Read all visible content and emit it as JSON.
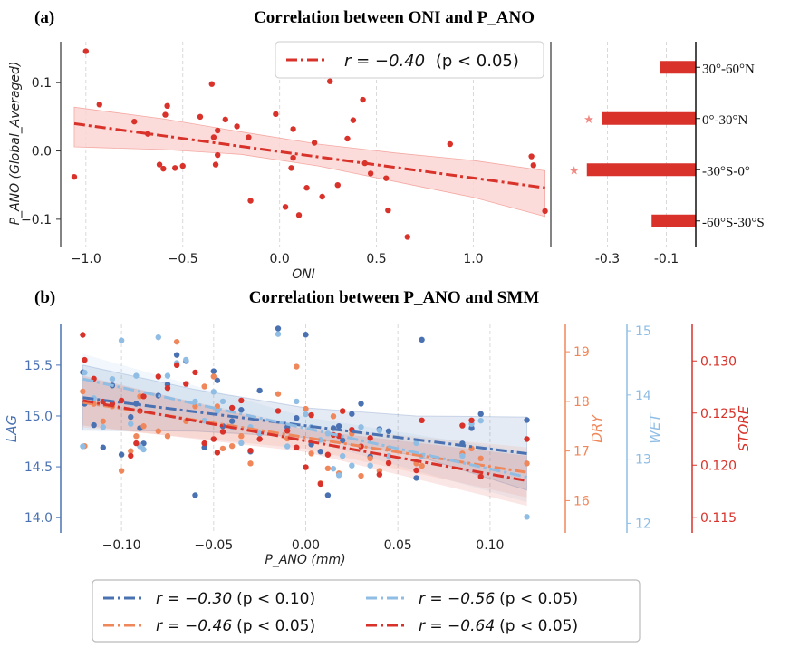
{
  "panel_a": {
    "tag": "(a)",
    "title": "Correlation between ONI and P_ANO",
    "xlabel": "ONI",
    "ylabel": "P_ANO (Global_Averaged)",
    "legend": {
      "r_text": "r = −0.40",
      "p_text": "(p < 0.05)"
    },
    "colors": {
      "main": "#d8322a",
      "band": "#fbd6d3"
    },
    "chart_data": {
      "type": "scatter",
      "xlim": [
        -1.13,
        1.4
      ],
      "ylim": [
        -0.14,
        0.16
      ],
      "xticks": [
        -1.0,
        -0.5,
        0.0,
        0.5,
        1.0
      ],
      "xticklabels": [
        "−1.0",
        "−0.5",
        "0.0",
        "0.5",
        "1.0"
      ],
      "yticks": [
        -0.1,
        0.0,
        0.1
      ],
      "yticklabels": [
        "−0.1",
        "0.0",
        "0.1"
      ],
      "grid": "vertical dashed",
      "legend_position": "top-right",
      "points": [
        [
          -1.0,
          0.146
        ],
        [
          -0.93,
          0.068
        ],
        [
          -0.75,
          0.043
        ],
        [
          -0.68,
          0.025
        ],
        [
          -0.62,
          -0.02
        ],
        [
          -0.6,
          -0.026
        ],
        [
          -0.59,
          0.053
        ],
        [
          -0.58,
          0.066
        ],
        [
          -0.54,
          -0.025
        ],
        [
          -0.5,
          -0.022
        ],
        [
          -0.41,
          0.05
        ],
        [
          -0.35,
          0.098
        ],
        [
          -0.34,
          0.02
        ],
        [
          -0.33,
          -0.02
        ],
        [
          -0.32,
          0.03
        ],
        [
          -0.32,
          -0.006
        ],
        [
          -0.28,
          0.046
        ],
        [
          -0.22,
          0.036
        ],
        [
          -0.16,
          0.02
        ],
        [
          -0.15,
          -0.073
        ],
        [
          -0.02,
          0.054
        ],
        [
          0.03,
          -0.082
        ],
        [
          0.06,
          -0.025
        ],
        [
          0.07,
          -0.01
        ],
        [
          0.07,
          0.032
        ],
        [
          0.1,
          -0.094
        ],
        [
          0.14,
          -0.054
        ],
        [
          0.18,
          0.012
        ],
        [
          0.22,
          -0.067
        ],
        [
          0.26,
          0.102
        ],
        [
          0.3,
          -0.05
        ],
        [
          0.35,
          0.018
        ],
        [
          0.38,
          0.045
        ],
        [
          0.43,
          0.075
        ],
        [
          0.44,
          -0.018
        ],
        [
          0.47,
          -0.033
        ],
        [
          0.55,
          -0.04
        ],
        [
          0.56,
          -0.087
        ],
        [
          0.66,
          -0.126
        ],
        [
          0.88,
          0.01
        ],
        [
          1.3,
          -0.008
        ],
        [
          1.31,
          -0.021
        ],
        [
          1.37,
          -0.088
        ],
        [
          -1.06,
          -0.038
        ]
      ],
      "fit": {
        "x": [
          -1.06,
          1.37
        ],
        "y": [
          0.04,
          -0.054
        ]
      },
      "ci_upper": [
        [
          -1.06,
          0.064
        ],
        [
          -0.6,
          0.047
        ],
        [
          -0.2,
          0.028
        ],
        [
          0.2,
          0.01
        ],
        [
          0.6,
          -0.003
        ],
        [
          1.0,
          -0.014
        ],
        [
          1.37,
          -0.029
        ]
      ],
      "ci_lower": [
        [
          -1.06,
          0.006
        ],
        [
          -0.6,
          0.002
        ],
        [
          -0.2,
          -0.005
        ],
        [
          0.2,
          -0.022
        ],
        [
          0.6,
          -0.045
        ],
        [
          1.0,
          -0.068
        ],
        [
          1.37,
          -0.096
        ]
      ]
    }
  },
  "panel_a_bars": {
    "chart_data": {
      "type": "bar",
      "orientation": "horizontal",
      "categories": [
        "30°-60°N",
        "0°-30°N",
        "-30°S-0°",
        "-60°S-30°S"
      ],
      "values": [
        -0.12,
        -0.32,
        -0.37,
        -0.15
      ],
      "significant": [
        false,
        true,
        true,
        false
      ],
      "xlim": [
        -0.48,
        0.0
      ],
      "xticks": [
        -0.3,
        -0.1
      ],
      "xticklabels": [
        "-0.3",
        "-0.1"
      ],
      "marker": "★",
      "grid": "vertical dashed"
    }
  },
  "panel_b": {
    "tag": "(b)",
    "title": "Correlation between P_ANO and SMM",
    "xlabel": "P_ANO  (mm)",
    "chart_data": {
      "type": "scatter",
      "xlim": [
        -0.133,
        0.133
      ],
      "xticks": [
        -0.1,
        -0.05,
        0.0,
        0.05,
        0.1
      ],
      "xticklabels": [
        "−0.10",
        "−0.05",
        "0.00",
        "0.05",
        "0.10"
      ],
      "grid": "vertical dashed",
      "x": [
        -0.121,
        -0.12,
        -0.115,
        -0.11,
        -0.105,
        -0.1,
        -0.095,
        -0.092,
        -0.09,
        -0.088,
        -0.08,
        -0.075,
        -0.07,
        -0.065,
        -0.06,
        -0.055,
        -0.05,
        -0.048,
        -0.045,
        -0.04,
        -0.035,
        -0.03,
        -0.025,
        -0.015,
        -0.01,
        -0.005,
        0.0,
        0.003,
        0.008,
        0.012,
        0.015,
        0.018,
        0.02,
        0.025,
        0.03,
        0.035,
        0.04,
        0.045,
        0.06,
        0.063,
        0.085,
        0.09,
        0.095,
        0.12
      ],
      "series": [
        {
          "name": "LAG",
          "axis_label": "LAG",
          "color": "#4a72b2",
          "ylim": [
            13.85,
            15.9
          ],
          "yticks": [
            14.0,
            14.5,
            15.0,
            15.5
          ],
          "yticklabels": [
            "14.0",
            "14.5",
            "15.0",
            "15.5"
          ],
          "legend": {
            "r_text": "r = −0.30",
            "p_text": "(p < 0.10)"
          },
          "values": [
            15.43,
            15.12,
            14.91,
            14.69,
            15.3,
            14.62,
            14.99,
            15.12,
            14.88,
            14.73,
            15.2,
            15.31,
            15.6,
            15.54,
            14.22,
            14.69,
            15.44,
            15.35,
            14.9,
            14.95,
            15.06,
            14.65,
            15.25,
            15.86,
            14.89,
            14.98,
            15.8,
            14.72,
            14.65,
            14.22,
            14.88,
            14.9,
            14.76,
            15.02,
            15.12,
            14.6,
            14.87,
            14.85,
            14.39,
            15.75,
            14.73,
            14.88,
            15.02,
            14.96
          ],
          "fit": {
            "x": [
              -0.121,
              0.12
            ],
            "y": [
              15.18,
              14.63
            ]
          },
          "ci_upper": [
            [
              -0.121,
              15.5
            ],
            [
              -0.06,
              15.26
            ],
            [
              0.0,
              15.08
            ],
            [
              0.06,
              15.0
            ],
            [
              0.12,
              14.99
            ]
          ],
          "ci_lower": [
            [
              -0.121,
              14.86
            ],
            [
              -0.06,
              14.85
            ],
            [
              0.0,
              14.79
            ],
            [
              0.06,
              14.61
            ],
            [
              0.12,
              14.27
            ]
          ]
        },
        {
          "name": "DRY",
          "axis_label": "DRY",
          "color": "#f0875a",
          "ylim": [
            15.35,
            19.55
          ],
          "yticks": [
            16,
            17,
            18,
            19
          ],
          "yticklabels": [
            "16",
            "17",
            "18",
            "19"
          ],
          "legend": {
            "r_text": "r = −0.46",
            "p_text": "(p < 0.05)"
          },
          "values": [
            18.2,
            17.1,
            17.95,
            17.6,
            17.9,
            16.6,
            17.0,
            17.3,
            18.1,
            17.5,
            17.4,
            17.3,
            19.2,
            17.6,
            17.9,
            18.3,
            18.5,
            17.9,
            17.05,
            17.1,
            17.3,
            16.75,
            17.35,
            18.15,
            17.25,
            18.7,
            17.85,
            16.95,
            16.35,
            16.65,
            17.7,
            16.55,
            17.8,
            17.35,
            16.5,
            16.85,
            16.6,
            17.05,
            16.75,
            16.7,
            16.95,
            17.05,
            16.85,
            16.75
          ],
          "fit": {
            "x": [
              -0.121,
              0.12
            ],
            "y": [
              17.98,
              16.57
            ]
          }
        },
        {
          "name": "WET",
          "axis_label": "WET",
          "color": "#8fbde4",
          "ylim": [
            11.85,
            15.1
          ],
          "yticks": [
            12,
            13,
            14,
            15
          ],
          "yticklabels": [
            "12",
            "13",
            "14",
            "15"
          ],
          "legend": {
            "r_text": "r = −0.56",
            "p_text": "(p < 0.05)"
          },
          "values": [
            13.2,
            14.35,
            13.95,
            13.5,
            14.25,
            14.85,
            13.55,
            14.3,
            13.2,
            13.15,
            14.9,
            14.3,
            14.5,
            14.55,
            13.9,
            13.6,
            14.05,
            13.75,
            13.9,
            13.5,
            13.25,
            13.5,
            13.4,
            14.95,
            13.2,
            13.9,
            13.7,
            13.5,
            13.3,
            13.4,
            12.85,
            12.75,
            13.05,
            12.9,
            13.5,
            12.9,
            13.45,
            13.05,
            13.25,
            13.05,
            13.05,
            13.55,
            13.6,
            12.1
          ],
          "fit": {
            "x": [
              -0.121,
              0.12
            ],
            "y": [
              14.25,
              12.72
            ]
          }
        },
        {
          "name": "STORE",
          "axis_label": "STORE",
          "color": "#d8322a",
          "ylim": [
            0.1135,
            0.1335
          ],
          "yticks": [
            0.115,
            0.12,
            0.125,
            0.13
          ],
          "yticklabels": [
            "0.115",
            "0.120",
            "0.125",
            "0.130"
          ],
          "legend": {
            "r_text": "r = −0.64",
            "p_text": "(p < 0.05)"
          },
          "values": [
            0.1325,
            0.1301,
            0.1283,
            0.1261,
            0.1259,
            0.1262,
            0.1209,
            0.1221,
            0.1252,
            0.1266,
            0.1285,
            0.1274,
            0.1296,
            0.1278,
            0.1289,
            0.1221,
            0.1225,
            0.1212,
            0.1232,
            0.1255,
            0.1262,
            0.1214,
            0.1225,
            0.1252,
            0.1233,
            0.1217,
            0.1198,
            0.1248,
            0.1182,
            0.121,
            0.1229,
            0.1228,
            0.1252,
            0.1234,
            0.1218,
            0.1226,
            0.1191,
            0.1202,
            0.1195,
            0.1243,
            0.1238,
            0.1243,
            0.1189,
            0.1225
          ],
          "fit": {
            "x": [
              -0.121,
              0.12
            ],
            "y": [
              0.1262,
              0.1185
            ]
          }
        }
      ]
    }
  }
}
